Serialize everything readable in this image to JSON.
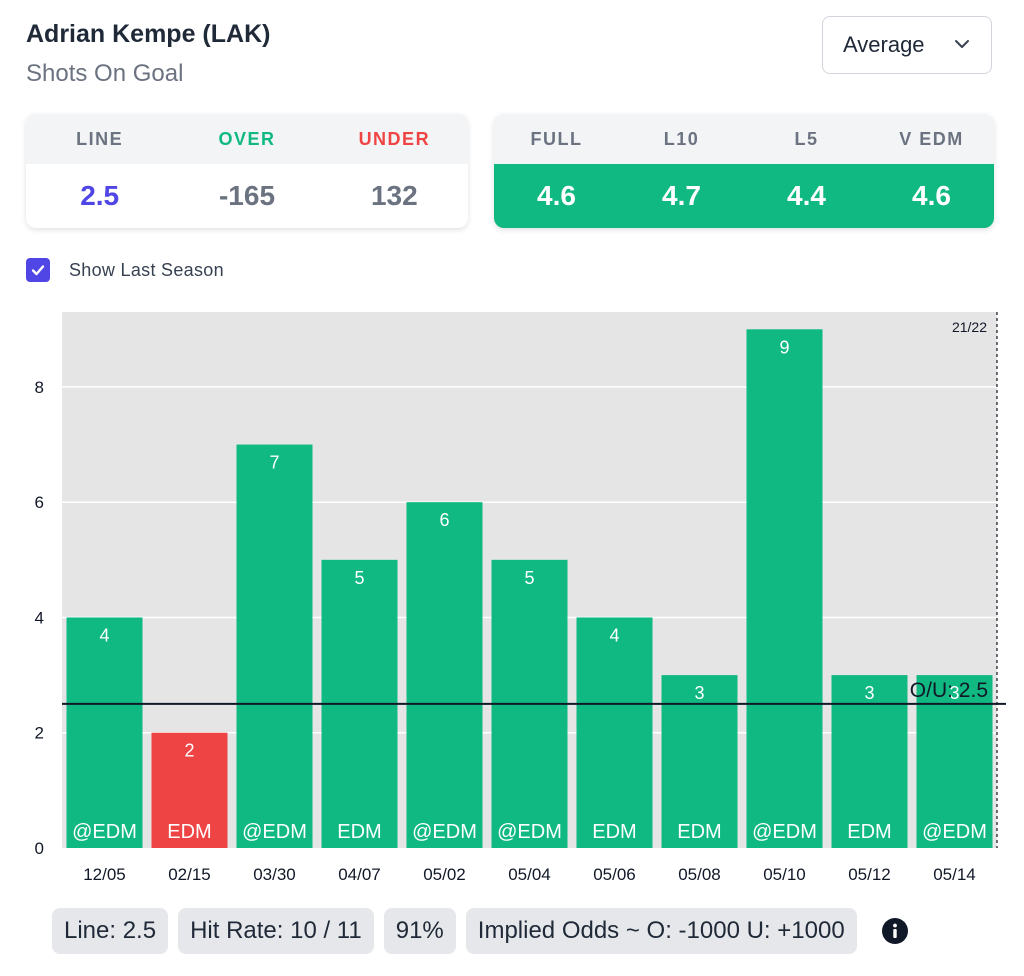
{
  "header": {
    "player": "Adrian Kempe (LAK)",
    "stat": "Shots On Goal",
    "dropdown_value": "Average"
  },
  "odds_card": {
    "headers": [
      "LINE",
      "OVER",
      "UNDER"
    ],
    "values": [
      "2.5",
      "-165",
      "132"
    ]
  },
  "avg_card": {
    "headers": [
      "FULL",
      "L10",
      "L5",
      "V EDM"
    ],
    "values": [
      "4.6",
      "4.7",
      "4.4",
      "4.6"
    ]
  },
  "toggle": {
    "label": "Show Last Season",
    "checked": true
  },
  "chart_data": {
    "type": "bar",
    "categories": [
      "12/05",
      "02/15",
      "03/30",
      "04/07",
      "05/02",
      "05/04",
      "05/06",
      "05/08",
      "05/10",
      "05/12",
      "05/14"
    ],
    "values": [
      4,
      2,
      7,
      5,
      6,
      5,
      4,
      3,
      9,
      3,
      3
    ],
    "opponents": [
      "@EDM",
      "EDM",
      "@EDM",
      "EDM",
      "@EDM",
      "@EDM",
      "EDM",
      "EDM",
      "@EDM",
      "EDM",
      "@EDM"
    ],
    "line": 2.5,
    "line_label": "O/U: 2.5",
    "season_marker": "21/22",
    "yticks": [
      0,
      2,
      4,
      6,
      8
    ],
    "ylim": [
      0,
      9.3
    ],
    "colors": {
      "over": "#10b981",
      "under": "#ef4444",
      "background": "#e5e5e5"
    }
  },
  "footer": {
    "line": "Line: 2.5",
    "hit_rate": "Hit Rate: 10 / 11",
    "pct": "91%",
    "implied": "Implied Odds ~ O: -1000 U: +1000",
    "info_icon": "info-icon"
  }
}
